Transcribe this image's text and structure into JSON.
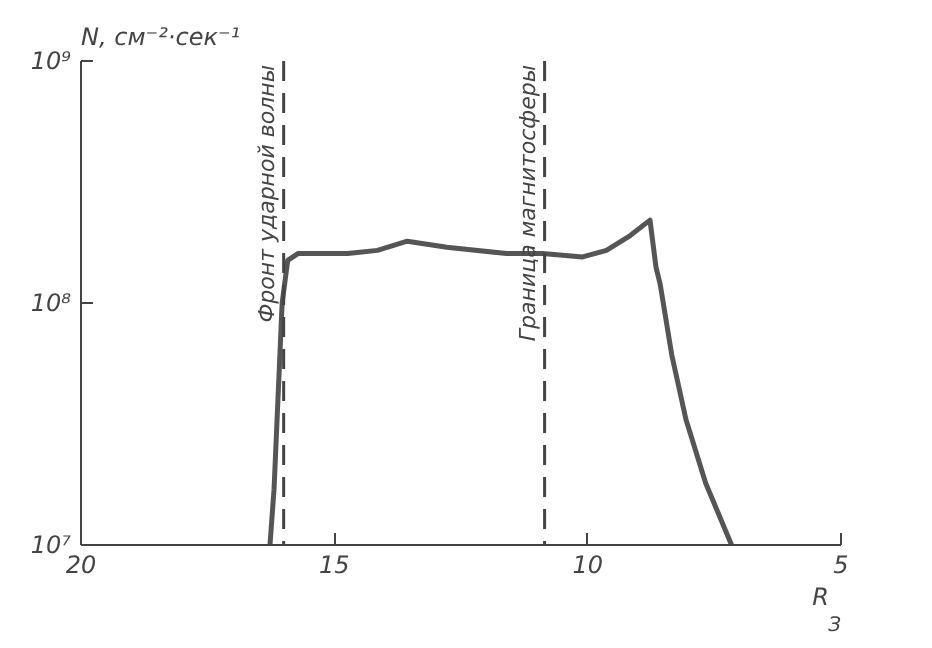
{
  "chart_data": {
    "type": "line",
    "ylabel": "N, см⁻²·сек⁻¹",
    "xlabel": "R$_{З}$",
    "x": [
      16.27,
      16.19,
      16.03,
      15.92,
      15.72,
      14.74,
      14.15,
      13.56,
      12.78,
      11.6,
      10.89,
      10.1,
      9.63,
      9.16,
      8.77,
      8.65,
      8.57,
      8.34,
      8.06,
      7.67,
      7.16
    ],
    "series": [
      {
        "color": "#555555",
        "values": [
          10000000.0,
          17000000.0,
          100000000.0,
          150000000.0,
          160000000.0,
          160000000.0,
          165000000.0,
          180000000.0,
          170000000.0,
          160000000.0,
          160000000.0,
          155000000.0,
          165000000.0,
          190000000.0,
          220000000.0,
          140000000.0,
          120000000.0,
          61000000.0,
          33000000.0,
          18000000.0,
          10000000.0
        ]
      }
    ],
    "log": "y",
    "xlim": [
      20,
      5
    ],
    "ylim": [
      10000000.0,
      1000000000.0
    ],
    "xticks": [
      20,
      15,
      10,
      5
    ],
    "yticks": [
      {
        "value": 10000000.0,
        "label": "10⁷"
      },
      {
        "value": 100000000.0,
        "label": "10⁸"
      },
      {
        "value": 1000000000.0,
        "label": "10⁹"
      }
    ],
    "ref_lines": [
      {
        "axis": "x",
        "value": 16.0,
        "label": "Фронт ударной волны",
        "line_style": "dashed"
      },
      {
        "axis": "x",
        "value": 10.85,
        "label": "Граница магнитосферы",
        "line_style": "dashed"
      }
    ],
    "grid": false,
    "marker": "none",
    "line_style": "solid"
  }
}
